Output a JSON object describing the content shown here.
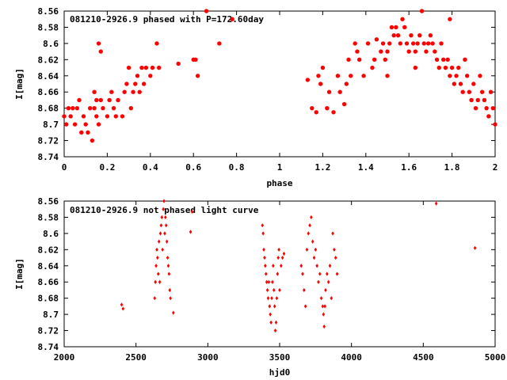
{
  "chart_data": [
    {
      "type": "scatter",
      "title": "081210-2926.9 phased with P=172.60day",
      "xlabel": "phase",
      "ylabel": "I[mag]",
      "xlim": [
        0,
        2
      ],
      "ylim": [
        8.56,
        8.74
      ],
      "y_inverted": true,
      "x_ticks": [
        "0",
        "0.2",
        "0.4",
        "0.6",
        "0.8",
        "1",
        "1.2",
        "1.4",
        "1.6",
        "1.8",
        "2"
      ],
      "y_ticks": [
        "8.56",
        "8.58",
        "8.6",
        "8.62",
        "8.64",
        "8.66",
        "8.68",
        "8.7",
        "8.72",
        "8.74"
      ],
      "marker": "filled-dot",
      "color": "#ff0000",
      "series": [
        {
          "points": [
            [
              0.0,
              8.69
            ],
            [
              0.01,
              8.7
            ],
            [
              0.02,
              8.68
            ],
            [
              0.03,
              8.69
            ],
            [
              0.04,
              8.68
            ],
            [
              0.05,
              8.7
            ],
            [
              0.06,
              8.68
            ],
            [
              0.07,
              8.67
            ],
            [
              0.08,
              8.71
            ],
            [
              0.09,
              8.69
            ],
            [
              0.1,
              8.7
            ],
            [
              0.11,
              8.71
            ],
            [
              0.12,
              8.68
            ],
            [
              0.13,
              8.72
            ],
            [
              0.14,
              8.68
            ],
            [
              0.15,
              8.69
            ],
            [
              0.16,
              8.7
            ],
            [
              0.17,
              8.67
            ],
            [
              0.18,
              8.68
            ],
            [
              0.2,
              8.69
            ],
            [
              0.21,
              8.67
            ],
            [
              0.22,
              8.66
            ],
            [
              0.23,
              8.68
            ],
            [
              0.24,
              8.69
            ],
            [
              0.25,
              8.67
            ],
            [
              0.27,
              8.69
            ],
            [
              0.28,
              8.66
            ],
            [
              0.29,
              8.65
            ],
            [
              0.3,
              8.63
            ],
            [
              0.31,
              8.68
            ],
            [
              0.32,
              8.66
            ],
            [
              0.33,
              8.65
            ],
            [
              0.34,
              8.64
            ],
            [
              0.35,
              8.66
            ],
            [
              0.36,
              8.63
            ],
            [
              0.37,
              8.65
            ],
            [
              0.38,
              8.63
            ],
            [
              0.4,
              8.64
            ],
            [
              0.41,
              8.63
            ],
            [
              0.43,
              8.6
            ],
            [
              0.44,
              8.63
            ],
            [
              0.53,
              8.625
            ],
            [
              0.6,
              8.62
            ],
            [
              0.61,
              8.62
            ],
            [
              0.62,
              8.64
            ],
            [
              0.66,
              8.56
            ],
            [
              0.72,
              8.6
            ],
            [
              0.78,
              8.57
            ],
            [
              0.17,
              8.61
            ],
            [
              0.16,
              8.6
            ],
            [
              0.14,
              8.66
            ],
            [
              0.15,
              8.67
            ],
            [
              1.13,
              8.645
            ],
            [
              1.15,
              8.68
            ],
            [
              1.17,
              8.685
            ],
            [
              1.18,
              8.64
            ],
            [
              1.19,
              8.65
            ],
            [
              1.2,
              8.63
            ],
            [
              1.22,
              8.68
            ],
            [
              1.23,
              8.66
            ],
            [
              1.25,
              8.685
            ],
            [
              1.27,
              8.64
            ],
            [
              1.28,
              8.66
            ],
            [
              1.3,
              8.675
            ],
            [
              1.31,
              8.65
            ],
            [
              1.32,
              8.62
            ],
            [
              1.33,
              8.64
            ],
            [
              1.35,
              8.6
            ],
            [
              1.36,
              8.61
            ],
            [
              1.37,
              8.62
            ],
            [
              1.39,
              8.64
            ],
            [
              1.41,
              8.6
            ],
            [
              1.43,
              8.63
            ],
            [
              1.44,
              8.62
            ],
            [
              1.45,
              8.595
            ],
            [
              1.47,
              8.61
            ],
            [
              1.48,
              8.6
            ],
            [
              1.49,
              8.62
            ],
            [
              1.5,
              8.61
            ],
            [
              1.51,
              8.6
            ],
            [
              1.52,
              8.58
            ],
            [
              1.53,
              8.59
            ],
            [
              1.54,
              8.58
            ],
            [
              1.55,
              8.59
            ],
            [
              1.56,
              8.6
            ],
            [
              1.57,
              8.57
            ],
            [
              1.58,
              8.58
            ],
            [
              1.59,
              8.6
            ],
            [
              1.6,
              8.61
            ],
            [
              1.61,
              8.59
            ],
            [
              1.62,
              8.6
            ],
            [
              1.63,
              8.61
            ],
            [
              1.64,
              8.6
            ],
            [
              1.65,
              8.59
            ],
            [
              1.66,
              8.56
            ],
            [
              1.67,
              8.6
            ],
            [
              1.68,
              8.61
            ],
            [
              1.69,
              8.6
            ],
            [
              1.7,
              8.59
            ],
            [
              1.71,
              8.6
            ],
            [
              1.72,
              8.61
            ],
            [
              1.73,
              8.62
            ],
            [
              1.74,
              8.63
            ],
            [
              1.75,
              8.6
            ],
            [
              1.76,
              8.62
            ],
            [
              1.77,
              8.63
            ],
            [
              1.78,
              8.62
            ],
            [
              1.79,
              8.64
            ],
            [
              1.8,
              8.63
            ],
            [
              1.81,
              8.65
            ],
            [
              1.82,
              8.64
            ],
            [
              1.83,
              8.63
            ],
            [
              1.84,
              8.65
            ],
            [
              1.85,
              8.66
            ],
            [
              1.86,
              8.62
            ],
            [
              1.87,
              8.64
            ],
            [
              1.88,
              8.66
            ],
            [
              1.89,
              8.67
            ],
            [
              1.9,
              8.65
            ],
            [
              1.91,
              8.68
            ],
            [
              1.92,
              8.67
            ],
            [
              1.93,
              8.64
            ],
            [
              1.94,
              8.66
            ],
            [
              1.95,
              8.67
            ],
            [
              1.96,
              8.68
            ],
            [
              1.97,
              8.69
            ],
            [
              1.98,
              8.66
            ],
            [
              1.99,
              8.68
            ],
            [
              2.0,
              8.7
            ],
            [
              1.79,
              8.57
            ],
            [
              1.63,
              8.63
            ],
            [
              1.5,
              8.64
            ]
          ]
        }
      ]
    },
    {
      "type": "scatter",
      "title": "081210-2926.9 not phased light curve",
      "xlabel": "hjd0",
      "ylabel": "I[mag]",
      "xlim": [
        2000,
        5000
      ],
      "ylim": [
        8.56,
        8.74
      ],
      "y_inverted": true,
      "x_ticks": [
        "2000",
        "2500",
        "3000",
        "3500",
        "4000",
        "4500",
        "5000"
      ],
      "y_ticks": [
        "8.56",
        "8.58",
        "8.6",
        "8.62",
        "8.64",
        "8.66",
        "8.68",
        "8.7",
        "8.72",
        "8.74"
      ],
      "marker": "small-diamond",
      "color": "#ff0000",
      "series": [
        {
          "points": [
            [
              2400,
              8.688
            ],
            [
              2410,
              8.693
            ],
            [
              2630,
              8.68
            ],
            [
              2635,
              8.66
            ],
            [
              2640,
              8.64
            ],
            [
              2645,
              8.62
            ],
            [
              2650,
              8.63
            ],
            [
              2655,
              8.65
            ],
            [
              2660,
              8.61
            ],
            [
              2665,
              8.66
            ],
            [
              2670,
              8.6
            ],
            [
              2675,
              8.59
            ],
            [
              2680,
              8.58
            ],
            [
              2685,
              8.62
            ],
            [
              2690,
              8.57
            ],
            [
              2695,
              8.56
            ],
            [
              2700,
              8.6
            ],
            [
              2705,
              8.58
            ],
            [
              2710,
              8.59
            ],
            [
              2715,
              8.61
            ],
            [
              2720,
              8.63
            ],
            [
              2725,
              8.64
            ],
            [
              2730,
              8.65
            ],
            [
              2735,
              8.67
            ],
            [
              2740,
              8.68
            ],
            [
              2760,
              8.698
            ],
            [
              2880,
              8.598
            ],
            [
              2890,
              8.573
            ],
            [
              3380,
              8.59
            ],
            [
              3385,
              8.6
            ],
            [
              3390,
              8.62
            ],
            [
              3395,
              8.63
            ],
            [
              3400,
              8.64
            ],
            [
              3405,
              8.65
            ],
            [
              3410,
              8.66
            ],
            [
              3415,
              8.67
            ],
            [
              3420,
              8.68
            ],
            [
              3425,
              8.66
            ],
            [
              3430,
              8.69
            ],
            [
              3435,
              8.7
            ],
            [
              3440,
              8.71
            ],
            [
              3445,
              8.68
            ],
            [
              3450,
              8.66
            ],
            [
              3455,
              8.64
            ],
            [
              3460,
              8.67
            ],
            [
              3465,
              8.69
            ],
            [
              3470,
              8.72
            ],
            [
              3475,
              8.71
            ],
            [
              3480,
              8.68
            ],
            [
              3485,
              8.65
            ],
            [
              3490,
              8.63
            ],
            [
              3495,
              8.62
            ],
            [
              3500,
              8.67
            ],
            [
              3510,
              8.64
            ],
            [
              3520,
              8.63
            ],
            [
              3530,
              8.625
            ],
            [
              3650,
              8.64
            ],
            [
              3660,
              8.65
            ],
            [
              3670,
              8.67
            ],
            [
              3680,
              8.69
            ],
            [
              3690,
              8.62
            ],
            [
              3700,
              8.6
            ],
            [
              3710,
              8.59
            ],
            [
              3720,
              8.58
            ],
            [
              3730,
              8.61
            ],
            [
              3740,
              8.63
            ],
            [
              3750,
              8.62
            ],
            [
              3760,
              8.64
            ],
            [
              3770,
              8.66
            ],
            [
              3780,
              8.65
            ],
            [
              3790,
              8.68
            ],
            [
              3800,
              8.69
            ],
            [
              3805,
              8.7
            ],
            [
              3810,
              8.715
            ],
            [
              3815,
              8.69
            ],
            [
              3820,
              8.67
            ],
            [
              3830,
              8.65
            ],
            [
              3840,
              8.66
            ],
            [
              3850,
              8.64
            ],
            [
              3860,
              8.68
            ],
            [
              3870,
              8.6
            ],
            [
              3880,
              8.62
            ],
            [
              3890,
              8.63
            ],
            [
              3900,
              8.65
            ],
            [
              4590,
              8.563
            ],
            [
              4860,
              8.618
            ]
          ]
        }
      ]
    }
  ]
}
